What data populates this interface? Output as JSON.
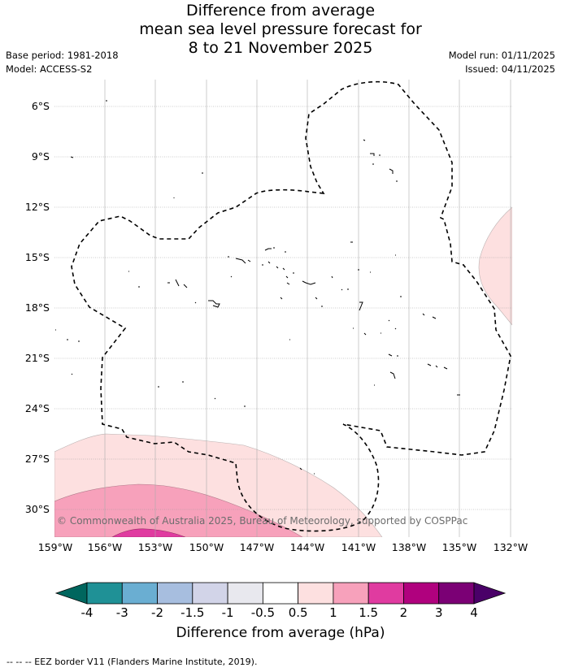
{
  "title": {
    "line1": "Difference from average",
    "line2": "mean sea level pressure forecast for",
    "line3": "8 to 21 November 2025"
  },
  "meta_left": {
    "base_period": "Base period: 1981-2018",
    "model": "Model: ACCESS-S2"
  },
  "meta_right": {
    "model_run": "Model run: 01/11/2025",
    "issued": "Issued: 04/11/2025"
  },
  "map": {
    "y_ticks": [
      "6°S",
      "9°S",
      "12°S",
      "15°S",
      "18°S",
      "21°S",
      "24°S",
      "27°S",
      "30°S"
    ],
    "x_ticks": [
      "159°W",
      "156°W",
      "153°W",
      "150°W",
      "147°W",
      "144°W",
      "141°W",
      "138°W",
      "135°W",
      "132°W"
    ],
    "copyright": "© Commonwealth of Australia 2025, Bureau of Meteorology, supported by COSPPac",
    "colors": {
      "c_0_5_1": "#fde0e0",
      "c_1_1_5": "#f7a1bb",
      "c_1_5_2": "#e03ba0",
      "eez_line": "#000000",
      "grid": "#999999"
    }
  },
  "colorbar": {
    "ticks": [
      "-4",
      "-3",
      "-2",
      "-1.5",
      "-1",
      "-0.5",
      "0.5",
      "1",
      "1.5",
      "2",
      "3",
      "4"
    ],
    "colors": [
      "#00665e",
      "#1f9196",
      "#6aaed2",
      "#a7bedf",
      "#d2d4e8",
      "#e8e8ee",
      "#ffffff",
      "#fde0e0",
      "#f7a1bb",
      "#e03ba0",
      "#b0017e",
      "#7b0075",
      "#4a0068"
    ],
    "label": "Difference from average (hPa)"
  },
  "footnote": "--  --  -- EEZ border V11 (Flanders Marine Institute, 2019)."
}
